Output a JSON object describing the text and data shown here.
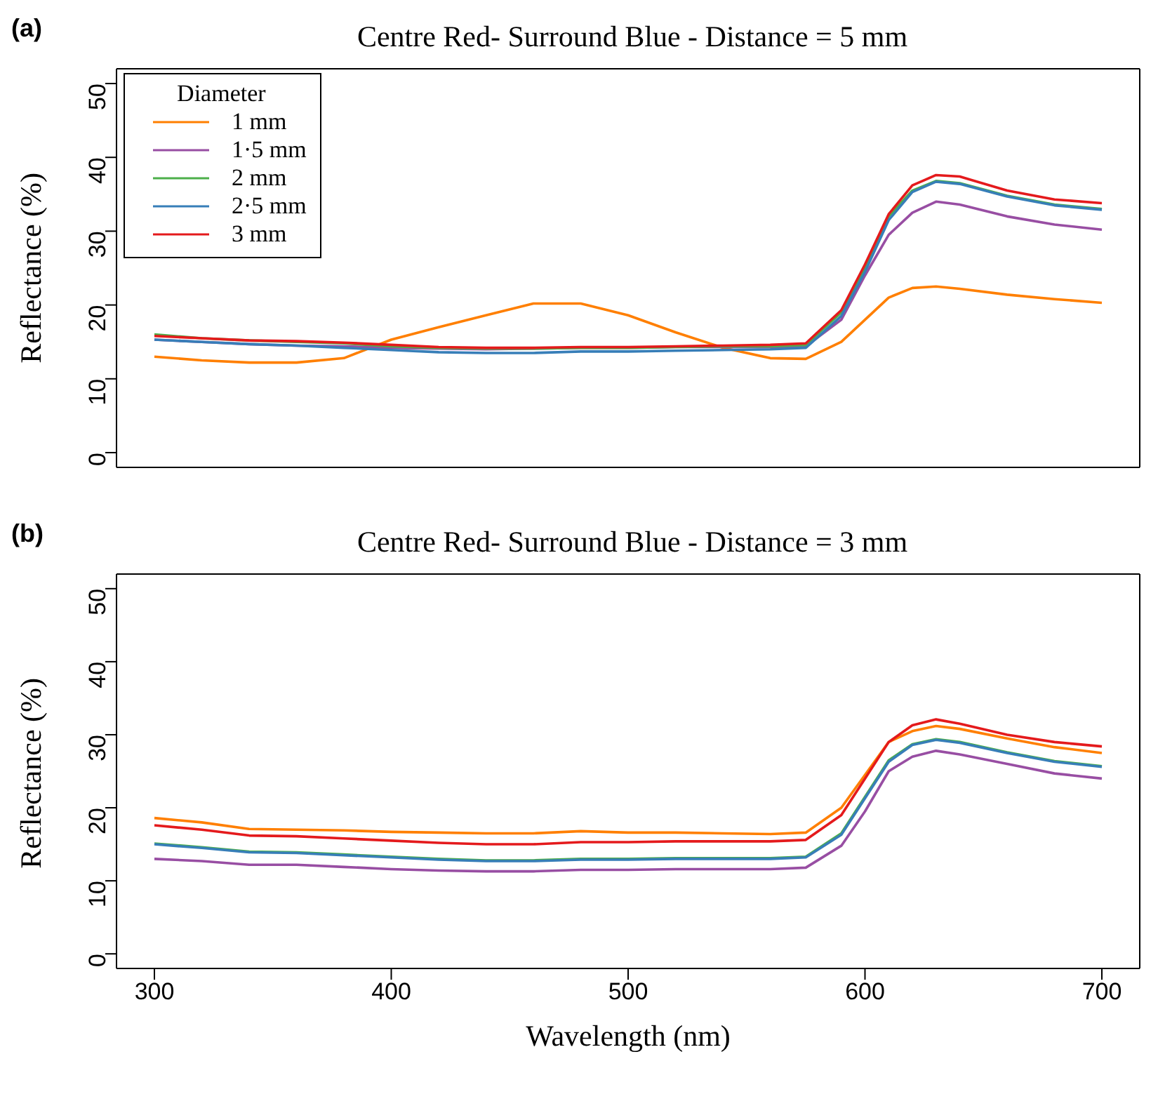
{
  "chart_data": [
    {
      "type": "line",
      "title": "Centre Red- Surround Blue - Distance = 5 mm",
      "ylabel": "Reflectance (%)",
      "annotations": [
        "(a)"
      ],
      "legend_title": "Diameter",
      "legend": "top left",
      "tick_labels": "y",
      "x": [
        300,
        320,
        340,
        360,
        380,
        400,
        420,
        440,
        460,
        480,
        500,
        520,
        540,
        560,
        575,
        590,
        600,
        610,
        620,
        630,
        640,
        660,
        680,
        700
      ],
      "xlim": [
        284,
        716
      ],
      "xticks": [
        300,
        400,
        500,
        600,
        700
      ],
      "ylim": [
        -2,
        52
      ],
      "yticks": [
        0,
        10,
        20,
        30,
        40,
        50
      ],
      "series": [
        {
          "name": "1 mm",
          "color": "#ff7f00",
          "values": [
            13,
            12.5,
            12.2,
            12.2,
            12.8,
            15.3,
            17,
            18.6,
            20.2,
            20.2,
            18.6,
            16.3,
            14.2,
            12.8,
            12.7,
            15,
            18,
            21,
            22.3,
            22.5,
            22.2,
            21.4,
            20.8,
            20.3
          ]
        },
        {
          "name": "1·5 mm",
          "color": "#984ea3",
          "values": [
            15.3,
            15,
            14.7,
            14.5,
            14.4,
            14.2,
            14.1,
            14,
            14.1,
            14.2,
            14.2,
            14.3,
            14.3,
            14.3,
            14.4,
            18,
            24,
            29.5,
            32.5,
            34,
            33.6,
            32,
            30.9,
            30.2
          ]
        },
        {
          "name": "2 mm",
          "color": "#4daf4a",
          "values": [
            16,
            15.5,
            15.2,
            15,
            14.8,
            14.4,
            14.2,
            14.1,
            14.1,
            14.2,
            14.2,
            14.3,
            14.4,
            14.4,
            14.6,
            19,
            25,
            32,
            35.5,
            36.8,
            36.5,
            34.8,
            33.6,
            33
          ]
        },
        {
          "name": "2·5 mm",
          "color": "#377eb8",
          "values": [
            15.3,
            15,
            14.7,
            14.5,
            14.2,
            13.9,
            13.6,
            13.5,
            13.5,
            13.7,
            13.7,
            13.8,
            13.9,
            14,
            14.2,
            18.5,
            24.5,
            31.5,
            35.3,
            36.7,
            36.4,
            34.7,
            33.5,
            32.9
          ]
        },
        {
          "name": "3 mm",
          "color": "#e41a1c",
          "values": [
            15.8,
            15.5,
            15.2,
            15.1,
            14.9,
            14.6,
            14.3,
            14.2,
            14.2,
            14.3,
            14.3,
            14.4,
            14.5,
            14.6,
            14.8,
            19.3,
            25.5,
            32.3,
            36.2,
            37.6,
            37.4,
            35.5,
            34.3,
            33.8
          ]
        }
      ]
    },
    {
      "type": "line",
      "title": "Centre Red- Surround Blue - Distance = 3 mm",
      "xlabel": "Wavelength (nm)",
      "ylabel": "Reflectance (%)",
      "annotations": [
        "(b)"
      ],
      "x": [
        300,
        320,
        340,
        360,
        380,
        400,
        420,
        440,
        460,
        480,
        500,
        520,
        540,
        560,
        575,
        590,
        600,
        610,
        620,
        630,
        640,
        660,
        680,
        700
      ],
      "xlim": [
        284,
        716
      ],
      "xticks": [
        300,
        400,
        500,
        600,
        700
      ],
      "ylim": [
        -2,
        52
      ],
      "yticks": [
        0,
        10,
        20,
        30,
        40,
        50
      ],
      "series": [
        {
          "color": "#ff7f00",
          "values": [
            18.6,
            18,
            17.1,
            17,
            16.9,
            16.7,
            16.6,
            16.5,
            16.5,
            16.8,
            16.6,
            16.6,
            16.5,
            16.4,
            16.6,
            20,
            24.5,
            29,
            30.5,
            31.2,
            30.8,
            29.5,
            28.3,
            27.5
          ]
        },
        {
          "color": "#984ea3",
          "values": [
            13,
            12.7,
            12.2,
            12.2,
            11.9,
            11.6,
            11.4,
            11.3,
            11.3,
            11.5,
            11.5,
            11.6,
            11.6,
            11.6,
            11.8,
            14.8,
            19.5,
            25,
            27,
            27.8,
            27.3,
            26,
            24.7,
            24
          ]
        },
        {
          "color": "#4daf4a",
          "values": [
            15.1,
            14.6,
            14,
            13.9,
            13.6,
            13.3,
            13,
            12.8,
            12.8,
            13,
            13,
            13.1,
            13.1,
            13.1,
            13.3,
            16.5,
            21.5,
            26.5,
            28.7,
            29.4,
            29,
            27.6,
            26.4,
            25.7
          ]
        },
        {
          "color": "#377eb8",
          "values": [
            15,
            14.5,
            13.9,
            13.8,
            13.5,
            13.2,
            12.9,
            12.7,
            12.7,
            12.9,
            12.9,
            13,
            13,
            13,
            13.2,
            16.3,
            21.3,
            26.3,
            28.6,
            29.3,
            28.9,
            27.5,
            26.3,
            25.6
          ]
        },
        {
          "color": "#e41a1c",
          "values": [
            17.6,
            17,
            16.2,
            16.1,
            15.8,
            15.5,
            15.2,
            15,
            15,
            15.3,
            15.3,
            15.4,
            15.4,
            15.4,
            15.6,
            19,
            24,
            29,
            31.3,
            32.1,
            31.5,
            30,
            29,
            28.4
          ]
        }
      ]
    }
  ]
}
